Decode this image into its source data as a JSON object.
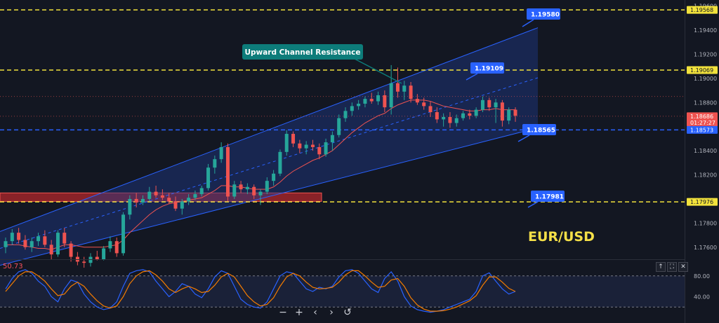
{
  "chart_data": {
    "type": "candlestick",
    "symbol": "EUR/USD",
    "price_axis": {
      "ylim": [
        1.175,
        1.1965
      ],
      "ticks": [
        "1.19600",
        "1.19400",
        "1.19200",
        "1.19000",
        "1.18800",
        "1.18400",
        "1.18200",
        "1.17800",
        "1.17600"
      ],
      "tick_values": [
        1.196,
        1.194,
        1.192,
        1.19,
        1.188,
        1.184,
        1.182,
        1.178,
        1.176
      ]
    },
    "axis_tags": [
      {
        "label": "1.19568",
        "value": 1.19568,
        "color": "#f2e23c",
        "text_color": "#131722"
      },
      {
        "label": "1.19069",
        "value": 1.19069,
        "color": "#f2e23c",
        "text_color": "#131722"
      },
      {
        "label": "1.18686",
        "value": 1.18686,
        "color": "#ef5350",
        "text_color": "#ffffff",
        "sub": "01:27:27"
      },
      {
        "label": "1.18573",
        "value": 1.18573,
        "color": "#2962ff",
        "text_color": "#ffffff"
      },
      {
        "label": "1.17976",
        "value": 1.17976,
        "color": "#f2e23c",
        "text_color": "#131722"
      }
    ],
    "horizontal_levels": [
      {
        "value": 1.19568,
        "color": "#f2e23c",
        "style": "dashed"
      },
      {
        "value": 1.19069,
        "color": "#f2e23c",
        "style": "dashed"
      },
      {
        "value": 1.18573,
        "color": "#2962ff",
        "style": "dashed"
      },
      {
        "value": 1.17976,
        "color": "#f2e23c",
        "style": "dashed"
      },
      {
        "value": 1.1885,
        "color": "#ef5350",
        "style": "dotted"
      },
      {
        "value": 1.18686,
        "color": "#ef5350",
        "style": "dotted"
      }
    ],
    "callouts": [
      {
        "label": "1.19580",
        "value": 1.1958
      },
      {
        "label": "1.19109",
        "value": 1.19109
      },
      {
        "label": "1.18565",
        "value": 1.18565
      },
      {
        "label": "1.17981",
        "value": 1.17981
      }
    ],
    "annotation": "Upward Channel Resistance",
    "support_zone": [
      1.1798,
      1.1805
    ],
    "candles": [
      [
        1.176,
        1.1768,
        1.1755,
        1.1765
      ],
      [
        1.1765,
        1.1775,
        1.1762,
        1.1772
      ],
      [
        1.1772,
        1.1776,
        1.1763,
        1.1766
      ],
      [
        1.1766,
        1.177,
        1.1758,
        1.176
      ],
      [
        1.176,
        1.1768,
        1.1756,
        1.1765
      ],
      [
        1.1765,
        1.1772,
        1.1761,
        1.1769
      ],
      [
        1.1769,
        1.1774,
        1.176,
        1.1762
      ],
      [
        1.1762,
        1.1766,
        1.175,
        1.1754
      ],
      [
        1.1754,
        1.1774,
        1.1752,
        1.1772
      ],
      [
        1.1772,
        1.1776,
        1.176,
        1.1763
      ],
      [
        1.1763,
        1.1765,
        1.1748,
        1.1752
      ],
      [
        1.1752,
        1.1756,
        1.1745,
        1.1748
      ],
      [
        1.1748,
        1.1752,
        1.1743,
        1.1747
      ],
      [
        1.1747,
        1.1755,
        1.1744,
        1.1752
      ],
      [
        1.1752,
        1.1757,
        1.1749,
        1.175
      ],
      [
        1.175,
        1.1761,
        1.1749,
        1.1759
      ],
      [
        1.1759,
        1.1769,
        1.1756,
        1.1765
      ],
      [
        1.1765,
        1.1768,
        1.1752,
        1.1755
      ],
      [
        1.1755,
        1.1789,
        1.1753,
        1.1787
      ],
      [
        1.1787,
        1.1803,
        1.1783,
        1.18
      ],
      [
        1.18,
        1.1805,
        1.1793,
        1.1797
      ],
      [
        1.1797,
        1.1803,
        1.1795,
        1.18
      ],
      [
        1.18,
        1.181,
        1.1798,
        1.1806
      ],
      [
        1.1806,
        1.1811,
        1.1801,
        1.1803
      ],
      [
        1.1803,
        1.1808,
        1.1799,
        1.1801
      ],
      [
        1.1801,
        1.1805,
        1.1796,
        1.1798
      ],
      [
        1.1798,
        1.1802,
        1.179,
        1.1792
      ],
      [
        1.1792,
        1.18,
        1.1787,
        1.1798
      ],
      [
        1.1798,
        1.1804,
        1.1795,
        1.1801
      ],
      [
        1.1801,
        1.1807,
        1.1799,
        1.1804
      ],
      [
        1.1804,
        1.1811,
        1.1802,
        1.1809
      ],
      [
        1.1809,
        1.1829,
        1.1807,
        1.1826
      ],
      [
        1.1826,
        1.1836,
        1.1821,
        1.1833
      ],
      [
        1.1833,
        1.1847,
        1.183,
        1.1843
      ],
      [
        1.1843,
        1.1846,
        1.1798,
        1.1802
      ],
      [
        1.1802,
        1.1815,
        1.18,
        1.1812
      ],
      [
        1.1812,
        1.1815,
        1.1805,
        1.1808
      ],
      [
        1.1808,
        1.1813,
        1.1804,
        1.181
      ],
      [
        1.181,
        1.1812,
        1.18,
        1.1803
      ],
      [
        1.1803,
        1.1808,
        1.1795,
        1.1806
      ],
      [
        1.1806,
        1.1818,
        1.1804,
        1.1815
      ],
      [
        1.1815,
        1.1824,
        1.1811,
        1.1821
      ],
      [
        1.1821,
        1.1841,
        1.1819,
        1.1839
      ],
      [
        1.1839,
        1.1857,
        1.1836,
        1.1854
      ],
      [
        1.1854,
        1.1856,
        1.1843,
        1.1846
      ],
      [
        1.1846,
        1.1849,
        1.1838,
        1.1842
      ],
      [
        1.1842,
        1.1848,
        1.1837,
        1.1845
      ],
      [
        1.1845,
        1.1849,
        1.184,
        1.1843
      ],
      [
        1.1843,
        1.1846,
        1.1833,
        1.1837
      ],
      [
        1.1837,
        1.185,
        1.1835,
        1.1847
      ],
      [
        1.1847,
        1.1856,
        1.184,
        1.1853
      ],
      [
        1.1853,
        1.187,
        1.1851,
        1.1867
      ],
      [
        1.1867,
        1.1876,
        1.1864,
        1.1873
      ],
      [
        1.1873,
        1.188,
        1.1869,
        1.1877
      ],
      [
        1.1877,
        1.1882,
        1.1874,
        1.1879
      ],
      [
        1.1879,
        1.1885,
        1.1876,
        1.1883
      ],
      [
        1.1883,
        1.1888,
        1.1879,
        1.1881
      ],
      [
        1.1881,
        1.1889,
        1.1878,
        1.1886
      ],
      [
        1.1886,
        1.189,
        1.1872,
        1.1876
      ],
      [
        1.1876,
        1.1911,
        1.187,
        1.1896
      ],
      [
        1.1896,
        1.1909,
        1.1884,
        1.1889
      ],
      [
        1.1889,
        1.1898,
        1.1882,
        1.1894
      ],
      [
        1.1894,
        1.1897,
        1.188,
        1.1883
      ],
      [
        1.1883,
        1.1887,
        1.1878,
        1.188
      ],
      [
        1.188,
        1.1884,
        1.1874,
        1.1877
      ],
      [
        1.1877,
        1.1881,
        1.1868,
        1.1872
      ],
      [
        1.1872,
        1.1876,
        1.1863,
        1.1866
      ],
      [
        1.1866,
        1.1871,
        1.186,
        1.1868
      ],
      [
        1.1868,
        1.1872,
        1.1859,
        1.1863
      ],
      [
        1.1863,
        1.187,
        1.186,
        1.1867
      ],
      [
        1.1867,
        1.1873,
        1.1865,
        1.1871
      ],
      [
        1.1871,
        1.1874,
        1.1866,
        1.1869
      ],
      [
        1.1869,
        1.1876,
        1.1867,
        1.1874
      ],
      [
        1.1874,
        1.1885,
        1.1872,
        1.1882
      ],
      [
        1.1882,
        1.1884,
        1.1873,
        1.1876
      ],
      [
        1.1876,
        1.1883,
        1.1863,
        1.188
      ],
      [
        1.188,
        1.1882,
        1.186,
        1.1865
      ],
      [
        1.1865,
        1.1876,
        1.1862,
        1.1874
      ],
      [
        1.1874,
        1.1876,
        1.1864,
        1.1869
      ]
    ],
    "moving_average": [
      1.1762,
      1.1762,
      1.1762,
      1.1761,
      1.176,
      1.1759,
      1.1759,
      1.1758,
      1.176,
      1.1762,
      1.1762,
      1.1761,
      1.176,
      1.176,
      1.176,
      1.176,
      1.1761,
      1.1762,
      1.1766,
      1.1772,
      1.1777,
      1.1782,
      1.1787,
      1.1791,
      1.1794,
      1.1796,
      1.1797,
      1.1798,
      1.1799,
      1.18,
      1.1801,
      1.1804,
      1.1807,
      1.1811,
      1.1811,
      1.181,
      1.181,
      1.1809,
      1.1808,
      1.1808,
      1.1808,
      1.181,
      1.1814,
      1.1819,
      1.1823,
      1.1826,
      1.1829,
      1.1832,
      1.1834,
      1.1837,
      1.184,
      1.1845,
      1.185,
      1.1855,
      1.1859,
      1.1863,
      1.1866,
      1.1869,
      1.1871,
      1.1875,
      1.1878,
      1.188,
      1.1882,
      1.1882,
      1.1882,
      1.1881,
      1.1879,
      1.1877,
      1.1876,
      1.1875,
      1.1874,
      1.1873,
      1.1873,
      1.1874,
      1.1874,
      1.1875,
      1.1874,
      1.1874,
      1.1874
    ],
    "oscillator": {
      "value_label": "50.73",
      "ylim": [
        0,
        100
      ],
      "ticks": [
        "80.00",
        "40.00"
      ],
      "tick_values": [
        80,
        40
      ],
      "bands": [
        80,
        20
      ],
      "k": [
        55,
        75,
        88,
        92,
        85,
        70,
        60,
        40,
        30,
        55,
        72,
        68,
        45,
        30,
        20,
        15,
        18,
        30,
        60,
        85,
        90,
        92,
        88,
        70,
        55,
        40,
        50,
        65,
        60,
        45,
        38,
        55,
        78,
        90,
        85,
        60,
        35,
        25,
        20,
        18,
        30,
        55,
        80,
        88,
        85,
        70,
        55,
        50,
        58,
        55,
        60,
        78,
        90,
        92,
        85,
        70,
        55,
        48,
        75,
        88,
        70,
        40,
        22,
        15,
        12,
        10,
        12,
        15,
        20,
        25,
        30,
        35,
        50,
        80,
        86,
        70,
        55,
        45,
        50
      ],
      "d": [
        50,
        65,
        80,
        88,
        88,
        80,
        70,
        55,
        42,
        45,
        60,
        68,
        60,
        45,
        32,
        22,
        18,
        22,
        40,
        65,
        80,
        88,
        90,
        82,
        70,
        55,
        48,
        55,
        60,
        55,
        48,
        50,
        62,
        78,
        85,
        78,
        60,
        42,
        30,
        22,
        25,
        38,
        60,
        78,
        85,
        80,
        68,
        58,
        55,
        56,
        58,
        68,
        82,
        90,
        90,
        80,
        68,
        58,
        60,
        72,
        75,
        60,
        38,
        24,
        16,
        12,
        12,
        13,
        16,
        20,
        26,
        32,
        42,
        62,
        78,
        78,
        68,
        56,
        50
      ]
    },
    "title": "EUR/USD"
  },
  "toolbar": {
    "zoom_out": "−",
    "zoom_in": "+",
    "scroll_left": "‹",
    "scroll_right": "›",
    "reset": "↺"
  },
  "osc_controls": {
    "up": "↑",
    "maximize": "⛶",
    "close": "✕"
  },
  "colors": {
    "background": "#131722",
    "bull": "#26a69a",
    "bear": "#ef5350",
    "channel_fill": "#1e3a8a",
    "channel_line": "#2962ff",
    "callout": "#2962ff",
    "annotation_bg": "#0d7c7a",
    "k_line": "#2962ff",
    "d_line": "#f57c00",
    "title_color": "#f5e048"
  }
}
